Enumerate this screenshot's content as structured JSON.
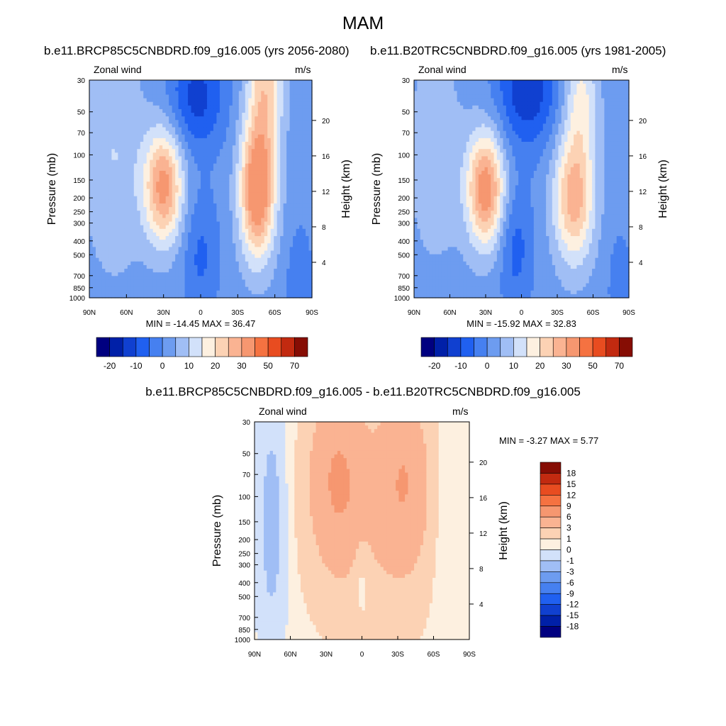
{
  "page": {
    "title": "MAM",
    "panel1_title": "b.e11.BRCP85C5CNBDRD.f09_g16.005 (yrs 2056-2080)",
    "panel2_title": "b.e11.B20TRC5CNBDRD.f09_g16.005 (yrs 1981-2005)",
    "panel3_title": "b.e11.BRCP85C5CNBDRD.f09_g16.005 - b.e11.B20TRC5CNBDRD.f09_g16.005"
  },
  "chart_data": [
    {
      "type": "heatmap",
      "variable": "Zonal wind",
      "units": "m/s",
      "ylabel": "Pressure (mb)",
      "y2label": "Height (km)",
      "x_ticks": [
        "90N",
        "60N",
        "30N",
        "0",
        "30S",
        "60S",
        "90S"
      ],
      "y_ticks": [
        30,
        50,
        70,
        100,
        150,
        200,
        250,
        300,
        400,
        500,
        700,
        850,
        1000
      ],
      "y_scale": "log",
      "height_ticks": [
        4,
        8,
        12,
        16,
        20
      ],
      "stats": "MIN = -14.45  MAX = 36.47",
      "min": -14.45,
      "max": 36.47,
      "colorbar_labels": [
        "-20",
        "-10",
        "0",
        "10",
        "20",
        "30",
        "50",
        "70"
      ],
      "colorbar_orientation": "horizontal",
      "features": {
        "northern_jet": {
          "lat": 30,
          "pressure_mb": 175,
          "max_approx": 30
        },
        "southern_jet": {
          "lat": -47,
          "pressure_mb": 190,
          "max_approx": 36.47
        },
        "tropical_easterlies": {
          "lat": 0,
          "min_approx": -14.45
        }
      }
    },
    {
      "type": "heatmap",
      "variable": "Zonal wind",
      "units": "m/s",
      "ylabel": "Pressure (mb)",
      "y2label": "Height (km)",
      "x_ticks": [
        "90N",
        "60N",
        "30N",
        "0",
        "30S",
        "60S",
        "90S"
      ],
      "y_ticks": [
        30,
        50,
        70,
        100,
        150,
        200,
        250,
        300,
        400,
        500,
        700,
        850,
        1000
      ],
      "y_scale": "log",
      "height_ticks": [
        4,
        8,
        12,
        16,
        20
      ],
      "stats": "MIN = -15.92  MAX = 32.83",
      "min": -15.92,
      "max": 32.83,
      "colorbar_labels": [
        "-20",
        "-10",
        "0",
        "10",
        "20",
        "30",
        "50",
        "70"
      ],
      "colorbar_orientation": "horizontal",
      "features": {
        "northern_jet": {
          "lat": 30,
          "pressure_mb": 180,
          "max_approx": 32.83
        },
        "southern_jet": {
          "lat": -45,
          "pressure_mb": 190,
          "max_approx": 25
        },
        "tropical_easterlies": {
          "lat": 0,
          "min_approx": -15.92
        }
      }
    },
    {
      "type": "heatmap",
      "variable": "Zonal wind",
      "units": "m/s",
      "ylabel": "Pressure (mb)",
      "y2label": "Height (km)",
      "x_ticks": [
        "90N",
        "60N",
        "30N",
        "0",
        "30S",
        "60S",
        "90S"
      ],
      "y_ticks": [
        30,
        50,
        70,
        100,
        150,
        200,
        250,
        300,
        400,
        500,
        700,
        850,
        1000
      ],
      "y_scale": "log",
      "height_ticks": [
        4,
        8,
        12,
        16,
        20
      ],
      "stats": "MIN =  -3.27  MAX =   5.77",
      "min": -3.27,
      "max": 5.77,
      "colorbar_labels": [
        "18",
        "15",
        "12",
        "9",
        "6",
        "3",
        "1",
        "0",
        "-1",
        "-3",
        "-6",
        "-9",
        "-12",
        "-15",
        "-18"
      ],
      "colorbar_orientation": "vertical"
    }
  ],
  "palette": [
    "#000080",
    "#0020a8",
    "#1040d0",
    "#2060f0",
    "#4680f0",
    "#6d9cf0",
    "#a0bef5",
    "#d2e1fa",
    "#fdf0e0",
    "#fcd2b4",
    "#fab392",
    "#f69770",
    "#f57241",
    "#e84c20",
    "#c22a10",
    "#860d04"
  ],
  "diff_palette": [
    "#000080",
    "#0020a8",
    "#1040d0",
    "#2060f0",
    "#4680f0",
    "#6d9cf0",
    "#a0bef5",
    "#d2e1fa",
    "#fdf0e0",
    "#fcd2b4",
    "#fab392",
    "#f69770",
    "#f57241",
    "#e84c20",
    "#c22a10",
    "#860d04"
  ]
}
